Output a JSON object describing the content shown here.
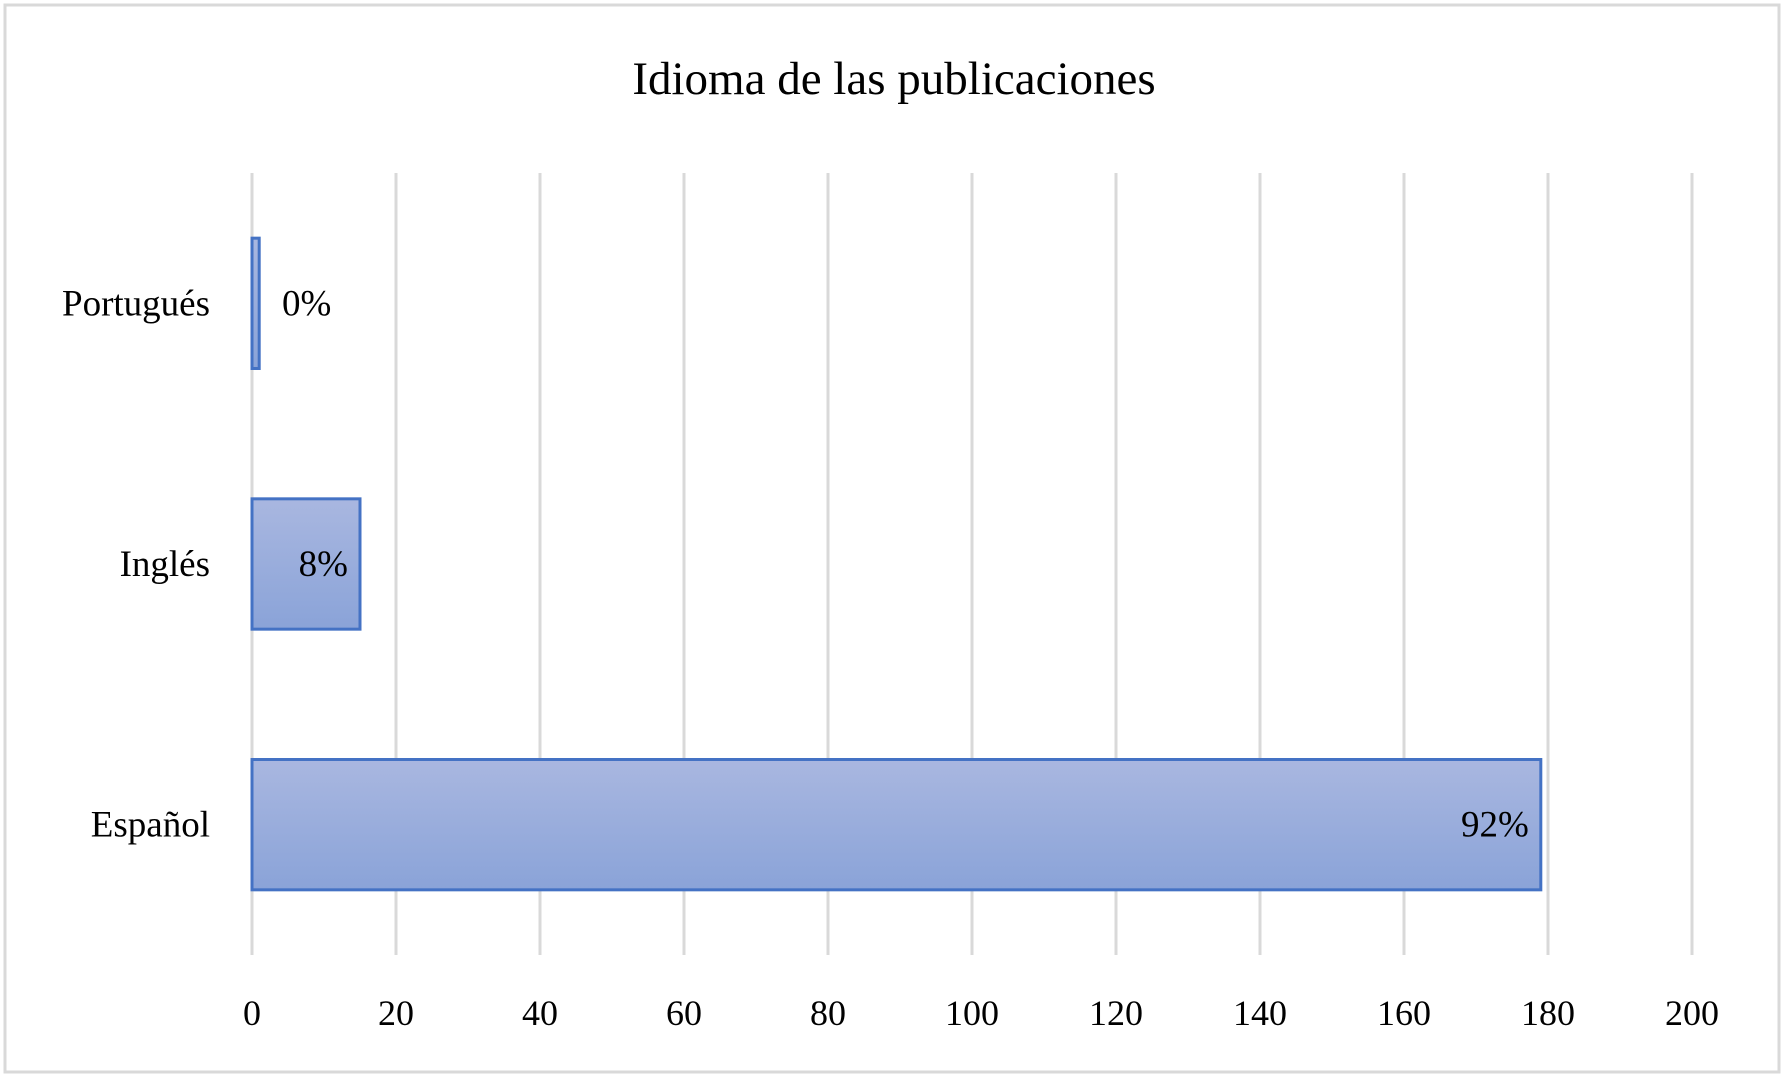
{
  "chart_data": {
    "type": "bar",
    "orientation": "horizontal",
    "title": "Idioma de las publicaciones",
    "categories": [
      "Español",
      "Inglés",
      "Portugués"
    ],
    "values": [
      179,
      15,
      1
    ],
    "data_labels": [
      "92%",
      "8%",
      "0%"
    ],
    "xlim": [
      0,
      200
    ],
    "x_ticks": [
      "0",
      "20",
      "40",
      "60",
      "80",
      "100",
      "120",
      "140",
      "160",
      "180",
      "200"
    ],
    "grid": "vertical",
    "legend": "none",
    "colors": {
      "bar_top": "#A9B7E0",
      "bar_bottom": "#8AA3D8",
      "bar_border": "#4472C4",
      "grid": "#D9D9D9",
      "frame": "#D9D9D9"
    }
  }
}
